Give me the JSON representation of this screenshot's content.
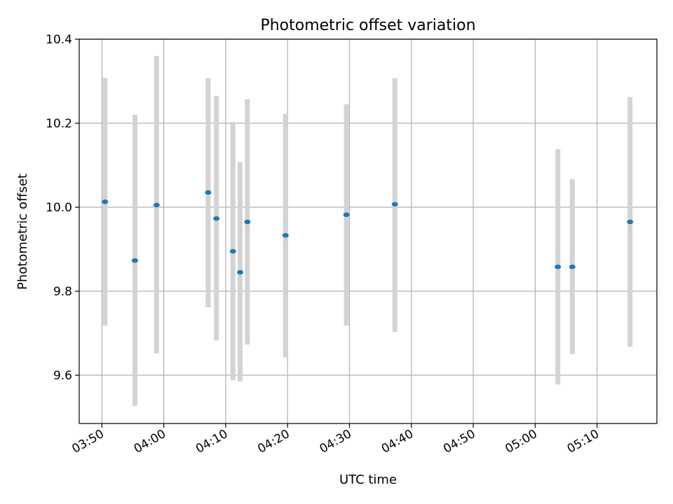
{
  "chart_data": {
    "type": "scatter",
    "title": "Photometric offset variation",
    "xlabel": "UTC time",
    "ylabel": "Photometric offset",
    "x_tick_labels": [
      "03:50",
      "04:00",
      "04:10",
      "04:20",
      "04:30",
      "04:40",
      "04:50",
      "05:00",
      "05:10"
    ],
    "y_tick_labels": [
      "9.6",
      "9.8",
      "10.0",
      "10.2",
      "10.4"
    ],
    "y_ticks": [
      9.6,
      9.8,
      10.0,
      10.2,
      10.4
    ],
    "xlim": [
      "03:46:20",
      "05:19:40"
    ],
    "ylim": [
      9.485,
      10.4
    ],
    "grid": true,
    "marker_color": "#1f77b4",
    "errorbar_color": "#d3d3d3",
    "points": [
      {
        "x": "03:50:30",
        "y": 10.013,
        "y_low": 9.718,
        "y_high": 10.308
      },
      {
        "x": "03:55:20",
        "y": 9.873,
        "y_low": 9.527,
        "y_high": 10.22
      },
      {
        "x": "03:58:50",
        "y": 10.005,
        "y_low": 9.652,
        "y_high": 10.36
      },
      {
        "x": "04:07:10",
        "y": 10.035,
        "y_low": 9.762,
        "y_high": 10.307
      },
      {
        "x": "04:08:30",
        "y": 9.973,
        "y_low": 9.683,
        "y_high": 10.265
      },
      {
        "x": "04:11:10",
        "y": 9.895,
        "y_low": 9.588,
        "y_high": 10.203
      },
      {
        "x": "04:12:20",
        "y": 9.845,
        "y_low": 9.585,
        "y_high": 10.107
      },
      {
        "x": "04:13:30",
        "y": 9.965,
        "y_low": 9.673,
        "y_high": 10.257
      },
      {
        "x": "04:19:40",
        "y": 9.933,
        "y_low": 9.643,
        "y_high": 10.222
      },
      {
        "x": "04:29:30",
        "y": 9.982,
        "y_low": 9.718,
        "y_high": 10.245
      },
      {
        "x": "04:37:20",
        "y": 10.007,
        "y_low": 9.703,
        "y_high": 10.307
      },
      {
        "x": "05:03:40",
        "y": 9.858,
        "y_low": 9.578,
        "y_high": 10.138
      },
      {
        "x": "05:06:00",
        "y": 9.858,
        "y_low": 9.65,
        "y_high": 10.067
      },
      {
        "x": "05:15:20",
        "y": 9.965,
        "y_low": 9.668,
        "y_high": 10.262
      }
    ]
  }
}
